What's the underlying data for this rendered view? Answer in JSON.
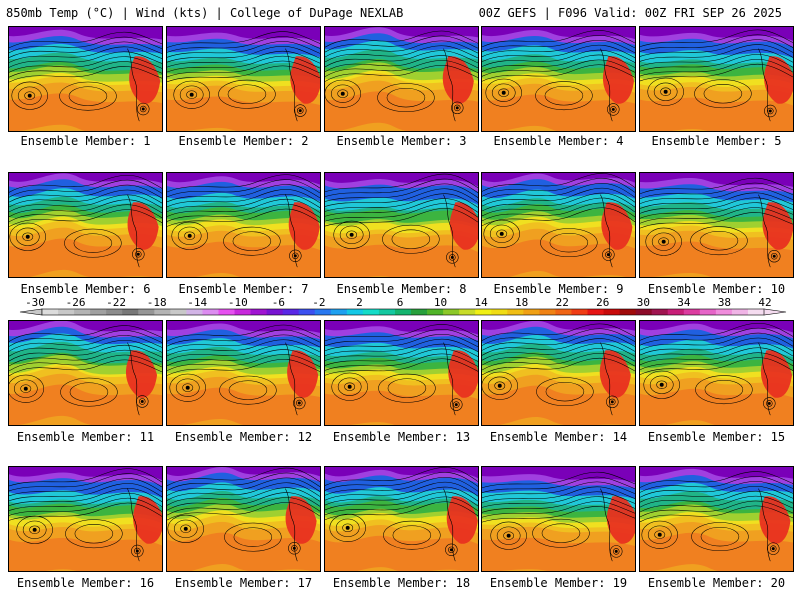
{
  "header": {
    "left": "850mb Temp (°C) | Wind (kts) | College of DuPage NEXLAB",
    "right": "00Z GEFS | F096 Valid: 00Z FRI SEP 26 2025"
  },
  "panels": [
    {
      "label": "Ensemble Member: 1"
    },
    {
      "label": "Ensemble Member: 2"
    },
    {
      "label": "Ensemble Member: 3"
    },
    {
      "label": "Ensemble Member: 4"
    },
    {
      "label": "Ensemble Member: 5"
    },
    {
      "label": "Ensemble Member: 6"
    },
    {
      "label": "Ensemble Member: 7"
    },
    {
      "label": "Ensemble Member: 8"
    },
    {
      "label": "Ensemble Member: 9"
    },
    {
      "label": "Ensemble Member: 10"
    },
    {
      "label": "Ensemble Member: 11"
    },
    {
      "label": "Ensemble Member: 12"
    },
    {
      "label": "Ensemble Member: 13"
    },
    {
      "label": "Ensemble Member: 14"
    },
    {
      "label": "Ensemble Member: 15"
    },
    {
      "label": "Ensemble Member: 16"
    },
    {
      "label": "Ensemble Member: 17"
    },
    {
      "label": "Ensemble Member: 18"
    },
    {
      "label": "Ensemble Member: 19"
    },
    {
      "label": "Ensemble Member: 20"
    }
  ],
  "colorbar": {
    "ticks": [
      "-30",
      "-26",
      "-22",
      "-18",
      "-14",
      "-10",
      "-6",
      "-2",
      "2",
      "6",
      "10",
      "14",
      "18",
      "22",
      "26",
      "30",
      "34",
      "38",
      "42"
    ],
    "colors": [
      "#dcdcdc",
      "#c8c8c8",
      "#b4b4b4",
      "#a0a0a0",
      "#8c8c8c",
      "#787878",
      "#969696",
      "#b4b4b4",
      "#c8c8c8",
      "#d2b4e6",
      "#dc8cf0",
      "#e650f0",
      "#c828dc",
      "#a014d2",
      "#7814d2",
      "#5a28e6",
      "#3c50f0",
      "#2878f0",
      "#1ea0f0",
      "#14c8e6",
      "#14dcc8",
      "#14c8a0",
      "#14b46e",
      "#28a03c",
      "#50b428",
      "#8cc828",
      "#c8dc28",
      "#f0f014",
      "#f0dc14",
      "#f0be14",
      "#f0a014",
      "#f08214",
      "#f06414",
      "#f03c14",
      "#e61414",
      "#c80a0a",
      "#a00a0a",
      "#8c0a28",
      "#a01450",
      "#c81e78",
      "#dc3ca0",
      "#e664c8",
      "#f08cdc",
      "#f0b4e6",
      "#f5dcf0"
    ],
    "arrow_colors": {
      "left": "#c8c8c8",
      "right": "#f5dcf0"
    }
  },
  "map_colors": {
    "deep_purple": "#7a00b8",
    "purple": "#a040e0",
    "blue": "#2060e0",
    "cyan": "#20c8d8",
    "teal": "#20b488",
    "green": "#3cb440",
    "lightgreen": "#a0d030",
    "yellow": "#f0e020",
    "gold": "#f0c020",
    "orange": "#f0a020",
    "darkorange": "#f08020",
    "red": "#e83020",
    "contour": "#000000"
  }
}
